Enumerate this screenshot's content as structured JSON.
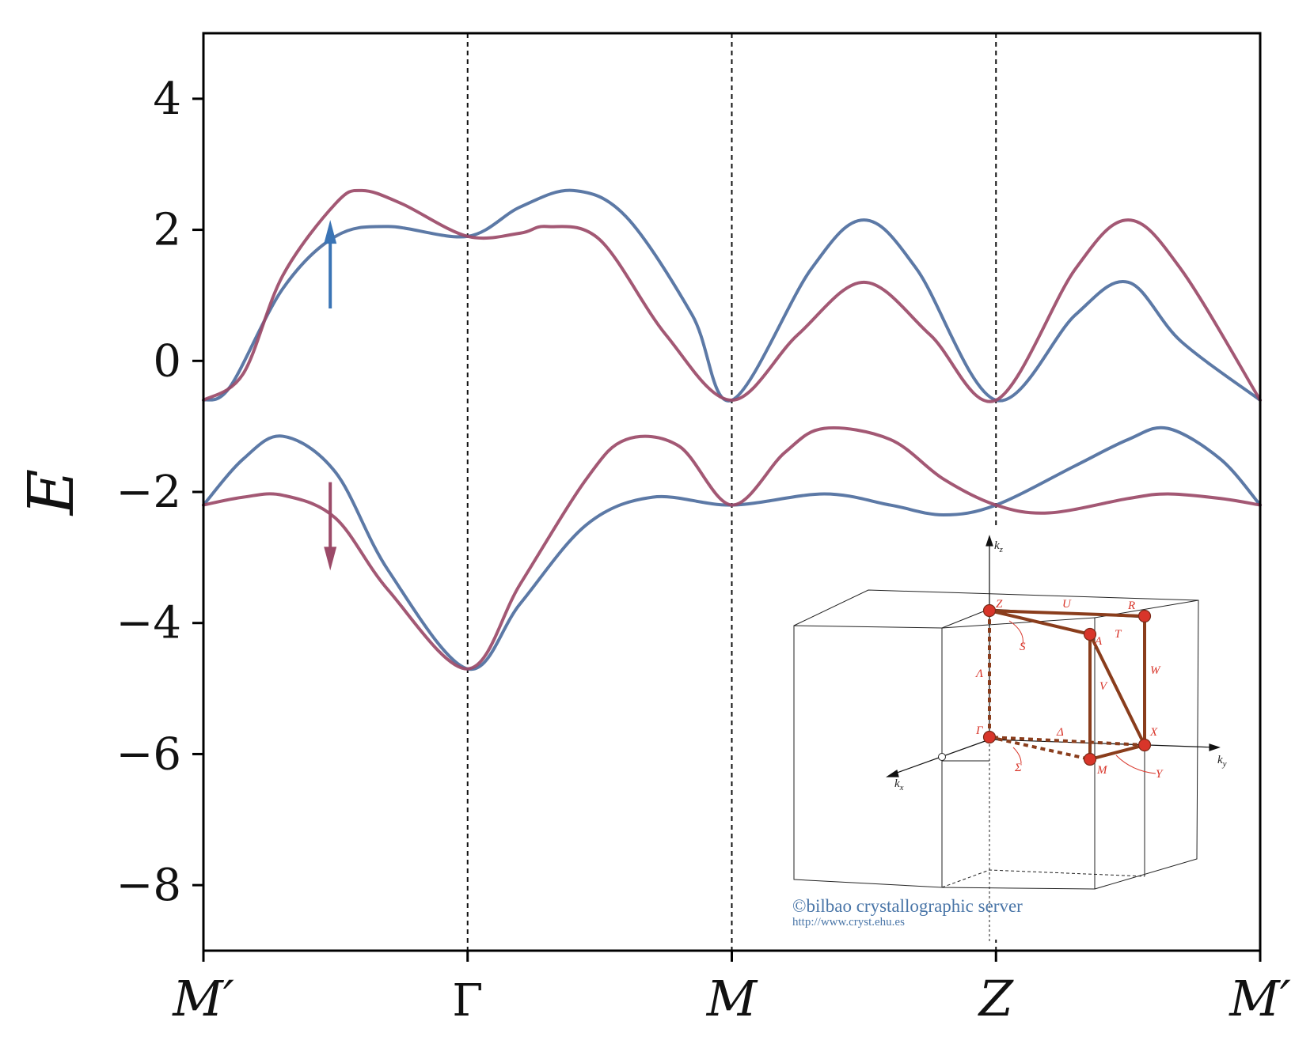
{
  "chart_data": {
    "type": "line",
    "ylabel": "E",
    "xlabel": "",
    "ylim": [
      -9,
      5
    ],
    "yticks": [
      4,
      2,
      0,
      -2,
      -4,
      -6,
      -8
    ],
    "ytick_labels": [
      "4",
      "2",
      "0",
      "−2",
      "−4",
      "−6",
      "−8"
    ],
    "kpoints": [
      {
        "label": "M′",
        "x": 0
      },
      {
        "label": "Γ",
        "x": 1
      },
      {
        "label": "M",
        "x": 2
      },
      {
        "label": "Z",
        "x": 3
      },
      {
        "label": "M′",
        "x": 4
      }
    ],
    "series": [
      {
        "color": "#4e6e9e",
        "points": [
          [
            0,
            -0.6
          ],
          [
            0.1,
            -0.4
          ],
          [
            0.3,
            1.1
          ],
          [
            0.5,
            1.9
          ],
          [
            0.7,
            2.05
          ],
          [
            1.0,
            1.9
          ],
          [
            1.2,
            2.35
          ],
          [
            1.4,
            2.6
          ],
          [
            1.6,
            2.2
          ],
          [
            1.85,
            0.7
          ],
          [
            2.0,
            -0.6
          ],
          [
            2.3,
            1.4
          ],
          [
            2.5,
            2.15
          ],
          [
            2.7,
            1.4
          ],
          [
            3.0,
            -0.6
          ],
          [
            3.3,
            0.7
          ],
          [
            3.5,
            1.2
          ],
          [
            3.7,
            0.3
          ],
          [
            4.0,
            -0.6
          ]
        ]
      },
      {
        "color": "#9b4a68",
        "points": [
          [
            0,
            -0.6
          ],
          [
            0.15,
            -0.2
          ],
          [
            0.3,
            1.3
          ],
          [
            0.5,
            2.4
          ],
          [
            0.6,
            2.6
          ],
          [
            0.75,
            2.4
          ],
          [
            1.0,
            1.9
          ],
          [
            1.2,
            1.95
          ],
          [
            1.3,
            2.05
          ],
          [
            1.5,
            1.85
          ],
          [
            1.75,
            0.4
          ],
          [
            2.0,
            -0.6
          ],
          [
            2.25,
            0.4
          ],
          [
            2.5,
            1.2
          ],
          [
            2.75,
            0.4
          ],
          [
            3.0,
            -0.6
          ],
          [
            3.3,
            1.4
          ],
          [
            3.5,
            2.15
          ],
          [
            3.7,
            1.4
          ],
          [
            4.0,
            -0.6
          ]
        ]
      },
      {
        "color": "#4e6e9e",
        "points": [
          [
            0,
            -2.2
          ],
          [
            0.15,
            -1.5
          ],
          [
            0.3,
            -1.15
          ],
          [
            0.5,
            -1.7
          ],
          [
            0.7,
            -3.2
          ],
          [
            1.0,
            -4.7
          ],
          [
            1.2,
            -3.7
          ],
          [
            1.45,
            -2.5
          ],
          [
            1.7,
            -2.08
          ],
          [
            2.0,
            -2.2
          ],
          [
            2.35,
            -2.03
          ],
          [
            2.6,
            -2.2
          ],
          [
            2.8,
            -2.35
          ],
          [
            3.0,
            -2.2
          ],
          [
            3.3,
            -1.6
          ],
          [
            3.5,
            -1.2
          ],
          [
            3.65,
            -1.03
          ],
          [
            3.85,
            -1.5
          ],
          [
            4.0,
            -2.2
          ]
        ]
      },
      {
        "color": "#9b4a68",
        "points": [
          [
            0,
            -2.2
          ],
          [
            0.15,
            -2.08
          ],
          [
            0.3,
            -2.05
          ],
          [
            0.5,
            -2.4
          ],
          [
            0.7,
            -3.5
          ],
          [
            1.0,
            -4.7
          ],
          [
            1.2,
            -3.4
          ],
          [
            1.45,
            -1.8
          ],
          [
            1.6,
            -1.2
          ],
          [
            1.8,
            -1.3
          ],
          [
            2.0,
            -2.2
          ],
          [
            2.2,
            -1.4
          ],
          [
            2.35,
            -1.03
          ],
          [
            2.6,
            -1.2
          ],
          [
            2.8,
            -1.8
          ],
          [
            3.0,
            -2.2
          ],
          [
            3.2,
            -2.32
          ],
          [
            3.5,
            -2.1
          ],
          [
            3.65,
            -2.03
          ],
          [
            3.85,
            -2.1
          ],
          [
            4.0,
            -2.2
          ]
        ]
      }
    ],
    "annotations": [
      {
        "name": "spin-up-arrow",
        "color": "#3a74b5",
        "x": 0.48,
        "y_from": 0.8,
        "y_to": 2.15
      },
      {
        "name": "spin-down-arrow",
        "color": "#9b4a68",
        "x": 0.48,
        "y_from": -1.85,
        "y_to": -3.2
      }
    ]
  },
  "inset": {
    "axis_labels": {
      "kz": "k",
      "kz_sub": "z",
      "ky": "k",
      "ky_sub": "y",
      "kx": "k",
      "kx_sub": "x"
    },
    "points": [
      "Z",
      "R",
      "A",
      "Γ",
      "X",
      "M"
    ],
    "lines": [
      "U",
      "T",
      "S",
      "Λ",
      "V",
      "W",
      "Δ",
      "Σ",
      "Y"
    ],
    "credit_line1": "©bilbao crystallographic server",
    "credit_line2": "http://www.cryst.ehu.es",
    "colors": {
      "path": "#8a3d1c",
      "point": "#d8352a",
      "label": "#d8352a",
      "credit": "#4a76a8"
    }
  }
}
